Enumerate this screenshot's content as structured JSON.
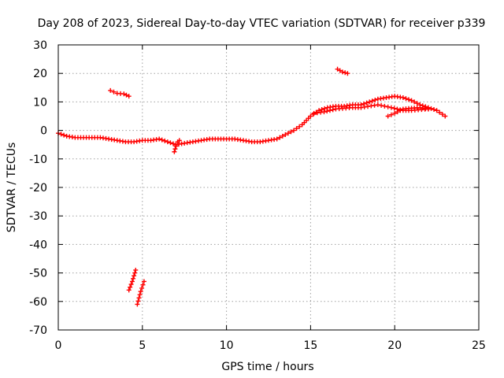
{
  "chart_data": {
    "type": "scatter",
    "title": "Day 208 of 2023, Sidereal Day-to-day VTEC variation (SDTVAR) for receiver p339",
    "xlabel": "GPS time / hours",
    "ylabel": "SDTVAR / TECUs",
    "xlim": [
      0,
      25
    ],
    "ylim": [
      -70,
      30
    ],
    "xticks": [
      0,
      5,
      10,
      15,
      20,
      25
    ],
    "yticks": [
      30,
      20,
      10,
      0,
      -10,
      -20,
      -30,
      -40,
      -50,
      -60,
      -70
    ],
    "grid": true,
    "marker": "+",
    "color": "#ff0000",
    "series": [
      {
        "name": "main-track",
        "points": [
          [
            0.0,
            -1.0
          ],
          [
            0.5,
            -2.0
          ],
          [
            1.0,
            -2.5
          ],
          [
            1.5,
            -2.5
          ],
          [
            2.0,
            -2.5
          ],
          [
            2.5,
            -2.5
          ],
          [
            3.0,
            -3.0
          ],
          [
            3.5,
            -3.5
          ],
          [
            4.0,
            -4.0
          ],
          [
            4.5,
            -4.0
          ],
          [
            5.0,
            -3.5
          ],
          [
            5.5,
            -3.5
          ],
          [
            6.0,
            -3.0
          ],
          [
            6.5,
            -4.0
          ],
          [
            7.0,
            -5.0
          ],
          [
            7.5,
            -4.5
          ],
          [
            8.0,
            -4.0
          ],
          [
            8.5,
            -3.5
          ],
          [
            9.0,
            -3.0
          ],
          [
            9.5,
            -3.0
          ],
          [
            10.0,
            -3.0
          ],
          [
            10.5,
            -3.0
          ],
          [
            11.0,
            -3.5
          ],
          [
            11.5,
            -4.0
          ],
          [
            12.0,
            -4.0
          ],
          [
            12.5,
            -3.5
          ],
          [
            13.0,
            -3.0
          ],
          [
            13.5,
            -1.5
          ],
          [
            14.0,
            0.0
          ],
          [
            14.5,
            2.0
          ],
          [
            15.0,
            5.0
          ],
          [
            15.5,
            7.0
          ],
          [
            16.0,
            8.0
          ],
          [
            16.5,
            8.5
          ],
          [
            17.0,
            8.5
          ],
          [
            17.5,
            9.0
          ],
          [
            18.0,
            9.0
          ],
          [
            18.5,
            10.0
          ],
          [
            19.0,
            11.0
          ],
          [
            19.5,
            11.5
          ],
          [
            20.0,
            12.0
          ],
          [
            20.5,
            11.5
          ],
          [
            21.0,
            10.5
          ],
          [
            21.5,
            9.0
          ],
          [
            22.0,
            8.0
          ],
          [
            22.5,
            7.0
          ],
          [
            23.0,
            5.0
          ]
        ]
      },
      {
        "name": "secondary-track",
        "points": [
          [
            15.2,
            6.0
          ],
          [
            15.8,
            6.5
          ],
          [
            16.5,
            7.5
          ],
          [
            17.5,
            8.0
          ],
          [
            18.0,
            8.0
          ],
          [
            19.0,
            9.0
          ],
          [
            19.8,
            8.0
          ],
          [
            20.5,
            7.0
          ],
          [
            21.0,
            7.0
          ],
          [
            22.0,
            7.5
          ]
        ]
      },
      {
        "name": "return-track",
        "points": [
          [
            19.6,
            5.0
          ],
          [
            20.0,
            6.0
          ],
          [
            20.5,
            7.5
          ],
          [
            21.0,
            7.8
          ],
          [
            21.5,
            8.0
          ],
          [
            22.0,
            7.5
          ]
        ]
      },
      {
        "name": "segment-upper-left",
        "points": [
          [
            3.1,
            14.0
          ],
          [
            3.5,
            13.0
          ],
          [
            3.9,
            12.8
          ],
          [
            4.2,
            12.0
          ]
        ]
      },
      {
        "name": "segment-upper-right",
        "points": [
          [
            16.6,
            21.5
          ],
          [
            16.9,
            20.5
          ],
          [
            17.2,
            20.0
          ]
        ]
      },
      {
        "name": "segment-low-1",
        "points": [
          [
            4.2,
            -56.0
          ],
          [
            4.4,
            -53.0
          ],
          [
            4.6,
            -49.0
          ]
        ]
      },
      {
        "name": "segment-low-2",
        "points": [
          [
            4.7,
            -61.0
          ],
          [
            4.9,
            -56.5
          ],
          [
            5.1,
            -53.0
          ]
        ]
      },
      {
        "name": "dip-cluster",
        "points": [
          [
            6.9,
            -7.5
          ],
          [
            7.0,
            -5.5
          ],
          [
            7.1,
            -4.0
          ],
          [
            7.2,
            -3.5
          ]
        ]
      }
    ]
  }
}
